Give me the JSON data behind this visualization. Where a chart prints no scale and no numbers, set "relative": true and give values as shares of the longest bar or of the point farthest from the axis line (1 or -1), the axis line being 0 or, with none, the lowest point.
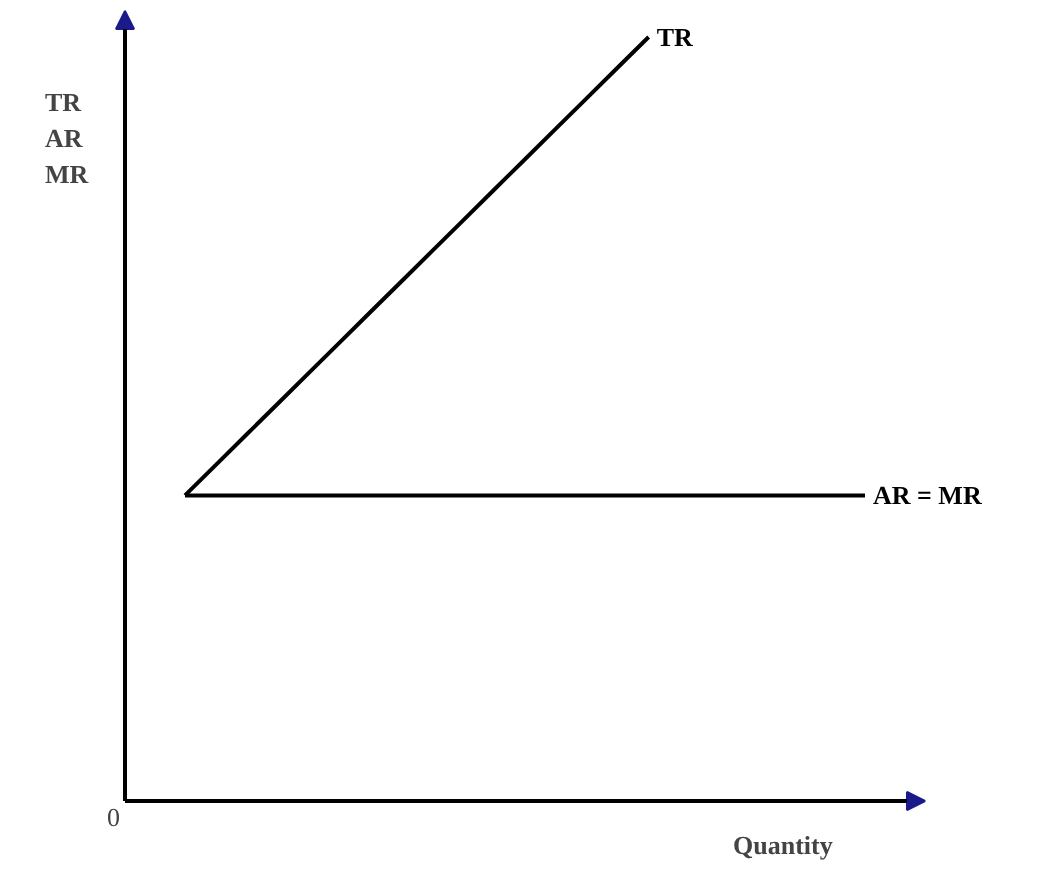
{
  "chart_data": {
    "type": "line",
    "relative": true,
    "xlabel": "Quantity",
    "ylabel": "TR\nAR\nMR",
    "annotations": [
      "0"
    ],
    "categories": [
      null,
      null,
      null,
      null,
      null,
      null,
      null,
      null,
      null,
      null,
      null,
      null,
      null,
      null,
      null,
      null,
      null,
      null,
      null,
      null,
      null,
      null,
      null
    ],
    "series": [
      {
        "name": "TR",
        "color": "#000000",
        "values": [
          0.4,
          0.44,
          0.48,
          0.52,
          0.56,
          0.6,
          0.64,
          0.68,
          0.72,
          0.76,
          0.8,
          0.84,
          0.88,
          0.92,
          0.96,
          1.0,
          null,
          null,
          null,
          null,
          null,
          null,
          null
        ]
      },
      {
        "name": "AR = MR",
        "color": "#000000",
        "values": [
          0.4,
          0.4,
          0.4,
          0.4,
          0.4,
          0.4,
          0.4,
          0.4,
          0.4,
          0.4,
          0.4,
          0.4,
          0.4,
          0.4,
          0.4,
          0.4,
          0.4,
          0.4,
          0.4,
          0.4,
          0.4,
          0.4,
          0.4
        ]
      }
    ]
  }
}
